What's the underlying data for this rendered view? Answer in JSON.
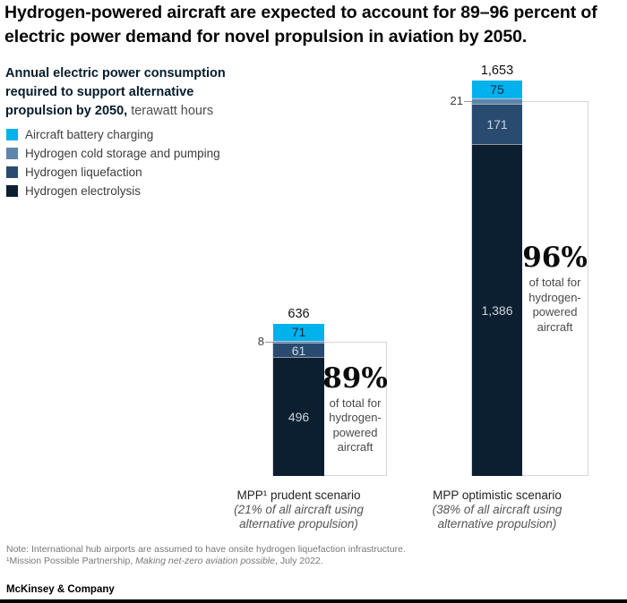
{
  "title": "Hydrogen-powered aircraft are expected to account for 89–96 percent of electric power demand for novel propulsion in aviation by 2050.",
  "subtitle": {
    "bold": "Annual electric power consumption required to support alternative propulsion by 2050,",
    "normal": " terawatt hours"
  },
  "brand": "McKinsey & Company",
  "footnotes": {
    "note": "Note: International hub airports are assumed to have onsite hydrogen liquefaction infrastructure.",
    "source_pre": "¹Mission Possible Partnership, ",
    "source_italic": "Making net-zero aviation possible",
    "source_post": ", July 2022."
  },
  "chart_data": {
    "type": "bar",
    "stacked": true,
    "title": "Annual electric power consumption required to support alternative propulsion by 2050",
    "ylabel": "terawatt hours",
    "grid": false,
    "legend_position": "top-left",
    "categories": [
      "MPP¹ prudent scenario",
      "MPP optimistic scenario"
    ],
    "category_subs": [
      "(21% of all aircraft using alternative propulsion)",
      "(38% of all aircraft using alternative propulsion)"
    ],
    "series": [
      {
        "name": "Aircraft battery charging",
        "color": "#00b2ec",
        "values": [
          71,
          75
        ]
      },
      {
        "name": "Hydrogen cold storage and pumping",
        "color": "#5d86aa",
        "values": [
          8,
          21
        ]
      },
      {
        "name": "Hydrogen liquefaction",
        "color": "#2a4b70",
        "values": [
          61,
          171
        ]
      },
      {
        "name": "Hydrogen electrolysis",
        "color": "#0c1f31",
        "values": [
          496,
          1386
        ]
      }
    ],
    "totals_display": [
      "636",
      "1,653"
    ],
    "segment_labels": [
      [
        "71",
        "8",
        "61",
        "496"
      ],
      [
        "75",
        "21",
        "171",
        "1,386"
      ]
    ],
    "annotations": [
      {
        "pct": "89%",
        "text": "of total for hydrogen-powered aircraft"
      },
      {
        "pct": "96%",
        "text": "of total for hydrogen-powered aircraft"
      }
    ]
  }
}
